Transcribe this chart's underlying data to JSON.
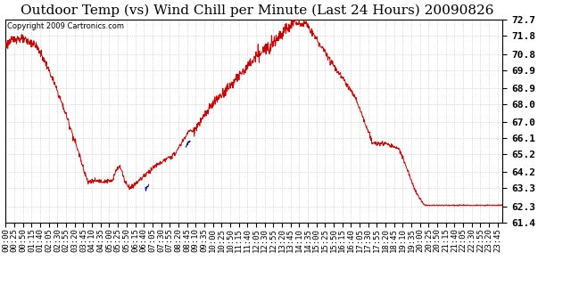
{
  "title": "Outdoor Temp (vs) Wind Chill per Minute (Last 24 Hours) 20090826",
  "copyright_text": "Copyright 2009 Cartronics.com",
  "y_min": 61.4,
  "y_max": 72.7,
  "y_ticks": [
    72.7,
    71.8,
    70.8,
    69.9,
    68.9,
    68.0,
    67.0,
    66.1,
    65.2,
    64.2,
    63.3,
    62.3,
    61.4
  ],
  "background_color": "#ffffff",
  "grid_color": "#bbbbbb",
  "line_color_red": "#cc0000",
  "line_color_blue": "#0000cc",
  "title_fontsize": 11,
  "copyright_fontsize": 6,
  "tick_fontsize": 6.5
}
